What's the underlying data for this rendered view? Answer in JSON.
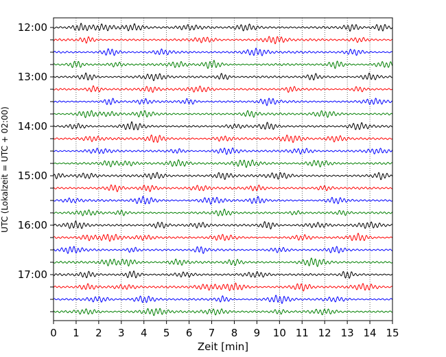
{
  "chart_data": {
    "type": "line",
    "title": "",
    "xlabel": "Zeit  [min]",
    "ylabel": "UTC (Lokalzeit = UTC + 02:00)",
    "xlim": [
      0,
      15
    ],
    "x_ticks": [
      "0",
      "1",
      "2",
      "3",
      "4",
      "5",
      "6",
      "7",
      "8",
      "9",
      "10",
      "11",
      "12",
      "13",
      "14",
      "15"
    ],
    "y_tick_labels": [
      "12:00",
      "13:00",
      "14:00",
      "15:00",
      "16:00",
      "17:00"
    ],
    "trace_interval_min": 15,
    "start_time": "12:00",
    "end_time": "17:45",
    "trace_colors": [
      "#000000",
      "#ff0000",
      "#0000ff",
      "#007f00"
    ],
    "grid": "vertical-dotted",
    "series": [
      {
        "start": "12:00",
        "color": "#000000",
        "burst_minutes": [
          1.2,
          2.2,
          3.5,
          6.0,
          8.5,
          13.2,
          14.5
        ]
      },
      {
        "start": "12:15",
        "color": "#ff0000",
        "burst_minutes": [
          1.5,
          6.7,
          9.8,
          13.5
        ]
      },
      {
        "start": "12:30",
        "color": "#0000ff",
        "burst_minutes": [
          2.5,
          4.8,
          9.0,
          13.3
        ]
      },
      {
        "start": "12:45",
        "color": "#007f00",
        "burst_minutes": [
          1.0,
          2.8,
          5.5,
          7.0,
          12.5,
          14.7
        ]
      },
      {
        "start": "13:00",
        "color": "#000000",
        "burst_minutes": [
          1.5,
          4.5,
          7.5,
          11.5,
          14.0
        ]
      },
      {
        "start": "13:15",
        "color": "#ff0000",
        "burst_minutes": [
          1.8,
          4.3,
          6.5,
          10.5,
          13.5
        ]
      },
      {
        "start": "13:30",
        "color": "#0000ff",
        "burst_minutes": [
          2.5,
          4.0,
          6.0,
          9.5,
          14.2
        ]
      },
      {
        "start": "13:45",
        "color": "#007f00",
        "burst_minutes": [
          1.5,
          2.5,
          4.0,
          8.7,
          12.0
        ]
      },
      {
        "start": "14:00",
        "color": "#000000",
        "burst_minutes": [
          1.0,
          3.5,
          8.0,
          9.5,
          13.5
        ]
      },
      {
        "start": "14:15",
        "color": "#ff0000",
        "burst_minutes": [
          1.7,
          4.5,
          7.5,
          10.5,
          12.5
        ]
      },
      {
        "start": "14:30",
        "color": "#0000ff",
        "burst_minutes": [
          2.0,
          5.5,
          7.7,
          11.0,
          14.3
        ]
      },
      {
        "start": "14:45",
        "color": "#007f00",
        "burst_minutes": [
          2.5,
          3.3,
          5.5,
          8.5,
          11.7
        ]
      },
      {
        "start": "15:00",
        "color": "#000000",
        "burst_minutes": [
          0.2,
          1.5,
          4.5,
          7.5,
          10.0,
          14.5
        ]
      },
      {
        "start": "15:15",
        "color": "#ff0000",
        "burst_minutes": [
          2.7,
          4.2,
          6.5,
          9.0,
          12.0
        ]
      },
      {
        "start": "15:30",
        "color": "#0000ff",
        "burst_minutes": [
          0.8,
          4.0,
          7.0,
          9.0,
          12.5
        ]
      },
      {
        "start": "15:45",
        "color": "#007f00",
        "burst_minutes": [
          1.5,
          3.0,
          7.5,
          10.7,
          12.8
        ]
      },
      {
        "start": "16:00",
        "color": "#000000",
        "burst_minutes": [
          1.0,
          4.7,
          6.5,
          9.5,
          11.7,
          14.0
        ]
      },
      {
        "start": "16:15",
        "color": "#ff0000",
        "burst_minutes": [
          1.5,
          2.5,
          4.0,
          7.5,
          11.0,
          13.5
        ]
      },
      {
        "start": "16:30",
        "color": "#0000ff",
        "burst_minutes": [
          0.8,
          3.5,
          6.5,
          10.0,
          12.5
        ]
      },
      {
        "start": "16:45",
        "color": "#007f00",
        "burst_minutes": [
          2.5,
          3.3,
          5.5,
          8.0,
          11.5
        ]
      },
      {
        "start": "17:00",
        "color": "#000000",
        "burst_minutes": [
          1.5,
          3.5,
          5.8,
          9.0,
          13.0
        ]
      },
      {
        "start": "17:15",
        "color": "#ff0000",
        "burst_minutes": [
          1.5,
          3.2,
          6.8,
          8.0,
          11.0,
          13.8
        ]
      },
      {
        "start": "17:30",
        "color": "#0000ff",
        "burst_minutes": [
          2.0,
          4.0,
          7.5,
          10.0,
          12.5
        ]
      },
      {
        "start": "17:45",
        "color": "#007f00",
        "burst_minutes": [
          1.5,
          4.5,
          7.2,
          10.0,
          12.0
        ]
      }
    ]
  }
}
